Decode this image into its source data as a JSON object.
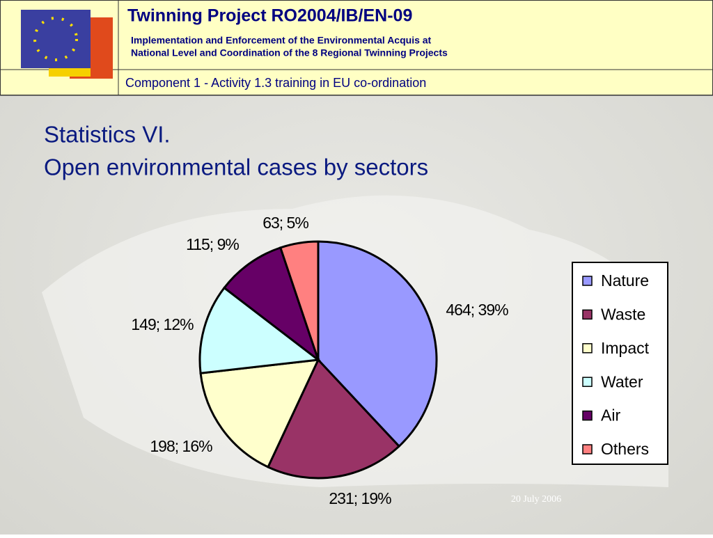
{
  "header": {
    "title": "Twinning Project RO2004/IB/EN-09",
    "subtitle_line1": "Implementation and Enforcement of the Environmental Acquis at",
    "subtitle_line2": "National Level and Coordination of the 8 Regional Twinning Projects",
    "component": "Component 1 - Activity 1.3 training in EU co-ordination"
  },
  "slide_title_line1": "Statistics VI.",
  "slide_title_line2": "Open environmental cases by sectors",
  "footer_date": "20 July 2006",
  "chart_data": {
    "type": "pie",
    "categories": [
      "Nature",
      "Waste",
      "Impact",
      "Water",
      "Air",
      "Others"
    ],
    "values": [
      464,
      231,
      198,
      149,
      115,
      63
    ],
    "value_labels": [
      "464; 39%",
      "231; 19%",
      "198; 16%",
      "149; 12%",
      "115; 9%",
      "63; 5%"
    ],
    "colors": [
      "#9999ff",
      "#993366",
      "#ffffcc",
      "#ccffff",
      "#660066",
      "#ff8080"
    ]
  }
}
